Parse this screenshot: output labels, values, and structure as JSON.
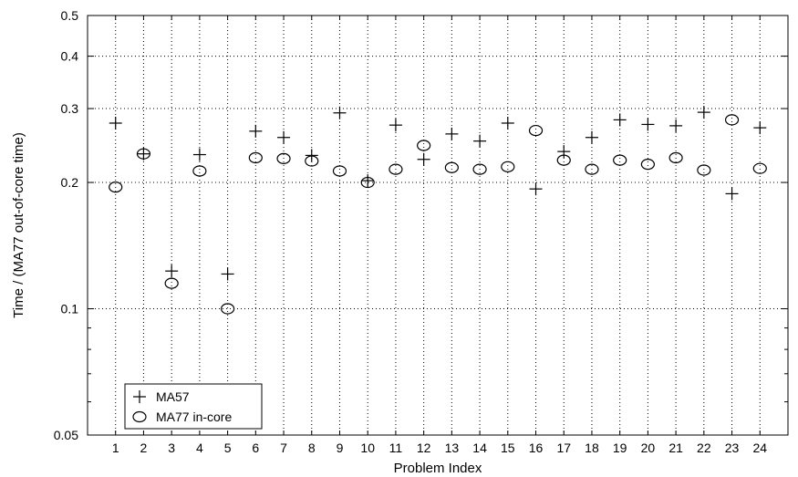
{
  "chart_data": {
    "type": "scatter",
    "title": "",
    "xlabel": "Problem Index",
    "ylabel": "Time / (MA77 out-of-core time)",
    "x_scale": "linear",
    "y_scale": "log",
    "xlim": [
      0,
      25
    ],
    "ylim": [
      0.05,
      0.5
    ],
    "x_ticks": [
      1,
      2,
      3,
      4,
      5,
      6,
      7,
      8,
      9,
      10,
      11,
      12,
      13,
      14,
      15,
      16,
      17,
      18,
      19,
      20,
      21,
      22,
      23,
      24
    ],
    "y_ticks": [
      0.05,
      0.1,
      0.2,
      0.3,
      0.4,
      0.5
    ],
    "y_tick_labels": [
      "0.05",
      "0.1",
      "0.2",
      "0.3",
      "0.4",
      "0.5"
    ],
    "grid": true,
    "legend": "bottom-left",
    "series": [
      {
        "name": "MA57",
        "marker": "plus",
        "x": [
          1,
          2,
          3,
          4,
          5,
          6,
          7,
          8,
          9,
          10,
          11,
          12,
          13,
          14,
          15,
          16,
          17,
          18,
          19,
          20,
          21,
          22,
          23,
          24
        ],
        "values": [
          0.277,
          0.234,
          0.123,
          0.233,
          0.121,
          0.265,
          0.256,
          0.232,
          0.293,
          0.202,
          0.274,
          0.227,
          0.261,
          0.251,
          0.277,
          0.193,
          0.237,
          0.256,
          0.282,
          0.275,
          0.273,
          0.294,
          0.188,
          0.27
        ]
      },
      {
        "name": "MA77 in-core",
        "marker": "circle",
        "x": [
          1,
          2,
          3,
          4,
          5,
          6,
          7,
          8,
          9,
          10,
          11,
          12,
          13,
          14,
          15,
          16,
          17,
          18,
          19,
          20,
          21,
          22,
          23,
          24
        ],
        "values": [
          0.195,
          0.234,
          0.115,
          0.213,
          0.1,
          0.229,
          0.228,
          0.225,
          0.213,
          0.2,
          0.215,
          0.245,
          0.217,
          0.215,
          0.218,
          0.266,
          0.226,
          0.215,
          0.226,
          0.221,
          0.229,
          0.214,
          0.282,
          0.216
        ]
      }
    ]
  }
}
